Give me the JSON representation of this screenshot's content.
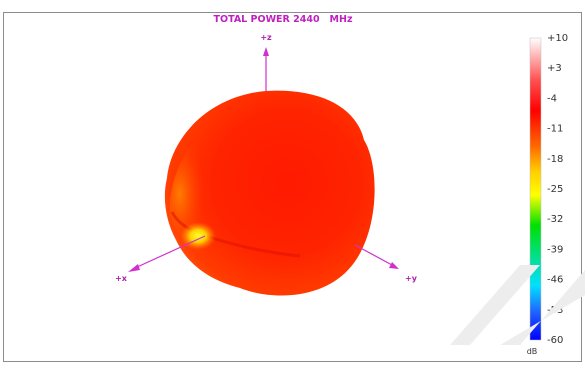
{
  "chart_data": {
    "type": "3d-radiation-pattern",
    "title": "TOTAL POWER 2440   MHz",
    "axes": {
      "z": "+z",
      "x": "+x",
      "y": "+y"
    },
    "colorbar": {
      "unit": "dB",
      "range": [
        -60,
        10
      ],
      "ticks": [
        "+10",
        "+3",
        "-4",
        "-11",
        "-18",
        "-25",
        "-32",
        "-39",
        "-46",
        "-53",
        "-60"
      ],
      "colors": [
        "#ffffff",
        "#ff0000",
        "#ffff00",
        "#00ff00",
        "#00ffff",
        "#0000ff"
      ]
    }
  }
}
